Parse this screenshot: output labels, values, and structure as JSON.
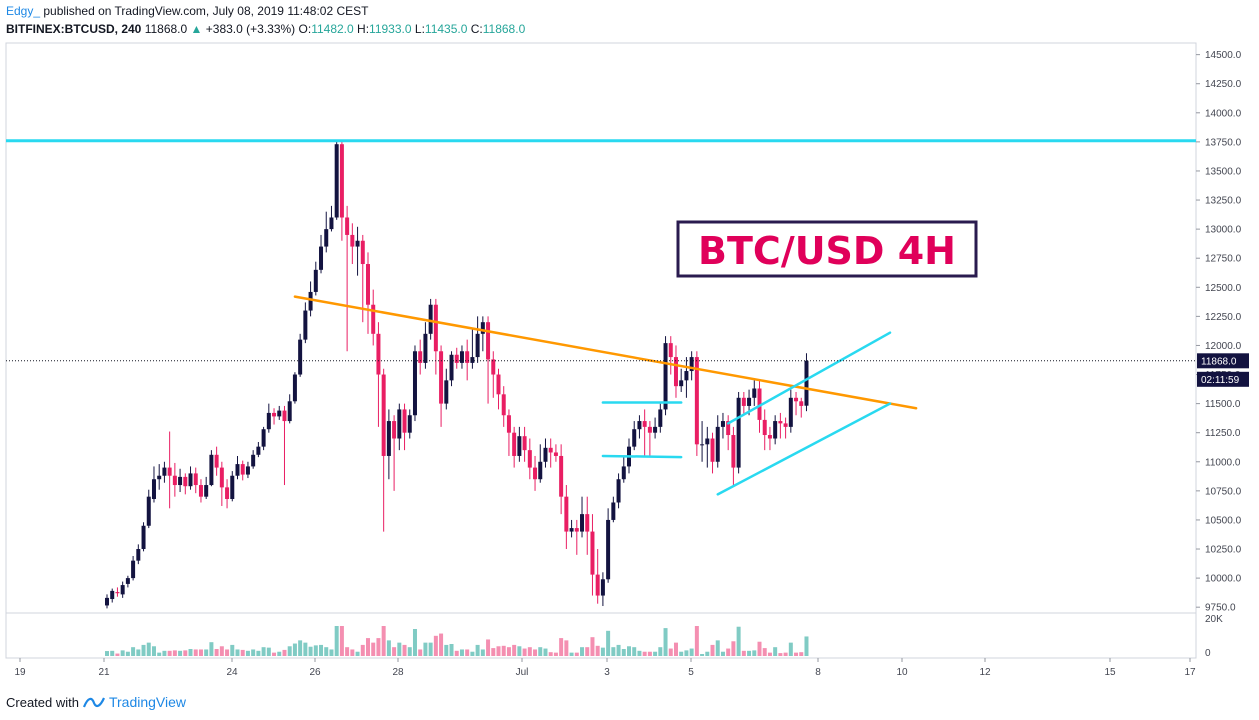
{
  "header": {
    "author": "Edgy_",
    "published": "published on TradingView.com, July 08, 2019 11:48:02 CEST",
    "symbol": "BITFINEX:BTCUSD, 240",
    "last": "11868.0",
    "change_arrow": "▲",
    "change": "+383.0 (+3.33%)",
    "o_label": "O:",
    "o": "11482.0",
    "h_label": "H:",
    "h": "11933.0",
    "l_label": "L:",
    "l": "11435.0",
    "c_label": "C:",
    "c": "11868.0"
  },
  "annotation": {
    "title": "BTC/USD 4H"
  },
  "price_badge": "11868.0",
  "countdown_badge": "02:11:59",
  "volume_label": "20K",
  "volume_zero": "0",
  "footer": {
    "created": "Created with",
    "brand": "TradingView"
  },
  "colors": {
    "up": "#131340",
    "down": "#e91e63",
    "vol_up": "#80cbc4",
    "vol_down": "#f48fb1",
    "cyan": "#29d9f0",
    "orange": "#ff9800",
    "annotation_border": "#2a1b4f",
    "annotation_text": "#e0005a"
  },
  "chart_data": {
    "type": "candlestick",
    "ylim": [
      9700,
      14600
    ],
    "y_ticks": [
      "14500.0",
      "14250.0",
      "14000.0",
      "13750.0",
      "13500.0",
      "13250.0",
      "13000.0",
      "12750.0",
      "12500.0",
      "12250.0",
      "12000.0",
      "11750.0",
      "11500.0",
      "11250.0",
      "11000.0",
      "10750.0",
      "10500.0",
      "10250.0",
      "10000.0",
      "9750.0"
    ],
    "x_ticks": [
      "19",
      "21",
      "24",
      "26",
      "28",
      "Jul",
      "3",
      "5",
      "8",
      "10",
      "12",
      "15",
      "17"
    ],
    "current_price": 11868,
    "horizontal_resistance": 13760,
    "candles": [
      [
        9765,
        9830,
        9740,
        9860
      ],
      [
        9820,
        9890,
        9790,
        9910
      ],
      [
        9880,
        9870,
        9840,
        9920
      ],
      [
        9860,
        9940,
        9830,
        9970
      ],
      [
        9950,
        10000,
        9920,
        10020
      ],
      [
        10000,
        10150,
        9980,
        10190
      ],
      [
        10150,
        10250,
        10120,
        10290
      ],
      [
        10250,
        10450,
        10230,
        10480
      ],
      [
        10450,
        10700,
        10430,
        10760
      ],
      [
        10680,
        10850,
        10650,
        10960
      ],
      [
        10850,
        10880,
        10760,
        10980
      ],
      [
        10880,
        10950,
        10820,
        11000
      ],
      [
        10950,
        10880,
        10600,
        11260
      ],
      [
        10880,
        10800,
        10700,
        10990
      ],
      [
        10800,
        10870,
        10740,
        10940
      ],
      [
        10870,
        10790,
        10720,
        10900
      ],
      [
        10790,
        10900,
        10760,
        10960
      ],
      [
        10900,
        10800,
        10730,
        10950
      ],
      [
        10800,
        10700,
        10650,
        10850
      ],
      [
        10700,
        10800,
        10680,
        10870
      ],
      [
        10800,
        11060,
        10790,
        11100
      ],
      [
        11060,
        10950,
        10880,
        11130
      ],
      [
        10950,
        10780,
        10620,
        11000
      ],
      [
        10780,
        10680,
        10600,
        10850
      ],
      [
        10680,
        10880,
        10660,
        10920
      ],
      [
        10880,
        10980,
        10850,
        11050
      ],
      [
        10980,
        10890,
        10840,
        11010
      ],
      [
        10890,
        10960,
        10860,
        11000
      ],
      [
        10960,
        11060,
        10940,
        11100
      ],
      [
        11060,
        11130,
        11040,
        11170
      ],
      [
        11130,
        11280,
        11100,
        11300
      ],
      [
        11280,
        11420,
        11250,
        11500
      ],
      [
        11420,
        11390,
        11320,
        11460
      ],
      [
        11390,
        11440,
        11360,
        11480
      ],
      [
        11440,
        11350,
        10800,
        11480
      ],
      [
        11350,
        11520,
        11330,
        11580
      ],
      [
        11520,
        11750,
        11500,
        11770
      ],
      [
        11750,
        12050,
        11730,
        12100
      ],
      [
        12050,
        12300,
        12020,
        12370
      ],
      [
        12300,
        12460,
        12250,
        12550
      ],
      [
        12460,
        12650,
        12430,
        12720
      ],
      [
        12650,
        12850,
        12620,
        12950
      ],
      [
        12850,
        13000,
        12800,
        13150
      ],
      [
        13000,
        13100,
        12980,
        13200
      ],
      [
        13100,
        13730,
        13080,
        13760
      ],
      [
        13730,
        13100,
        12900,
        13760
      ],
      [
        13100,
        12950,
        11950,
        13200
      ],
      [
        12950,
        12850,
        12700,
        13050
      ],
      [
        12850,
        12900,
        12600,
        13020
      ],
      [
        12900,
        12700,
        12200,
        12950
      ],
      [
        12700,
        12350,
        12100,
        12800
      ],
      [
        12350,
        12100,
        12000,
        12480
      ],
      [
        12100,
        11750,
        11300,
        12200
      ],
      [
        11750,
        11050,
        10400,
        11800
      ],
      [
        11050,
        11350,
        10850,
        11450
      ],
      [
        11350,
        11200,
        10750,
        11400
      ],
      [
        11200,
        11450,
        11100,
        11500
      ],
      [
        11450,
        11250,
        11100,
        11500
      ],
      [
        11250,
        11400,
        11200,
        11450
      ],
      [
        11400,
        11950,
        11350,
        12000
      ],
      [
        11950,
        11850,
        11750,
        12050
      ],
      [
        11850,
        12100,
        11800,
        12200
      ],
      [
        12100,
        12350,
        12050,
        12400
      ],
      [
        12350,
        11950,
        11750,
        12400
      ],
      [
        11950,
        11500,
        11300,
        12000
      ],
      [
        11500,
        11700,
        11450,
        11800
      ],
      [
        11700,
        11920,
        11650,
        11950
      ],
      [
        11920,
        11850,
        11800,
        11980
      ],
      [
        11850,
        11950,
        11800,
        12000
      ],
      [
        11950,
        11850,
        11700,
        12050
      ],
      [
        11850,
        11900,
        11800,
        12150
      ],
      [
        11900,
        12100,
        11850,
        12250
      ],
      [
        12100,
        12200,
        11950,
        12250
      ],
      [
        12200,
        11880,
        11500,
        12250
      ],
      [
        11880,
        11750,
        11550,
        11950
      ],
      [
        11750,
        11580,
        11450,
        11800
      ],
      [
        11580,
        11400,
        11300,
        11650
      ],
      [
        11400,
        11250,
        11050,
        11450
      ],
      [
        11250,
        11050,
        10950,
        11300
      ],
      [
        11050,
        11220,
        11000,
        11300
      ],
      [
        11220,
        11100,
        11000,
        11300
      ],
      [
        11100,
        10950,
        10850,
        11200
      ],
      [
        10950,
        10850,
        10750,
        11050
      ],
      [
        10850,
        11000,
        10820,
        11150
      ],
      [
        11000,
        11120,
        10950,
        11200
      ],
      [
        11120,
        11080,
        10950,
        11200
      ],
      [
        11080,
        11050,
        11000,
        11150
      ],
      [
        11050,
        10700,
        10550,
        11150
      ],
      [
        10700,
        10400,
        10250,
        10800
      ],
      [
        10400,
        10430,
        10350,
        10500
      ],
      [
        10430,
        10400,
        10200,
        10500
      ],
      [
        10400,
        10550,
        10350,
        10700
      ],
      [
        10550,
        10400,
        10200,
        10700
      ],
      [
        10400,
        10030,
        9850,
        10550
      ],
      [
        10030,
        9850,
        9780,
        10250
      ],
      [
        9850,
        9990,
        9760,
        10050
      ],
      [
        9990,
        10500,
        9960,
        10600
      ],
      [
        10500,
        10650,
        10480,
        10700
      ],
      [
        10650,
        10850,
        10600,
        10900
      ],
      [
        10850,
        10960,
        10820,
        11050
      ],
      [
        10960,
        11130,
        10900,
        11200
      ],
      [
        11130,
        11280,
        11100,
        11350
      ],
      [
        11280,
        11350,
        11200,
        11400
      ],
      [
        11350,
        11300,
        11050,
        11450
      ],
      [
        11300,
        11250,
        11050,
        11350
      ],
      [
        11250,
        11300,
        11200,
        11380
      ],
      [
        11300,
        11450,
        11250,
        11500
      ],
      [
        11450,
        12020,
        11400,
        12080
      ],
      [
        12020,
        11900,
        11750,
        12080
      ],
      [
        11900,
        11650,
        11550,
        12000
      ],
      [
        11650,
        11700,
        11600,
        11800
      ],
      [
        11700,
        11780,
        11550,
        11900
      ],
      [
        11780,
        11900,
        11700,
        11950
      ],
      [
        11900,
        11150,
        11050,
        11950
      ],
      [
        11150,
        11150,
        11000,
        11350
      ],
      [
        11150,
        11200,
        10950,
        11300
      ],
      [
        11200,
        11000,
        10900,
        11250
      ],
      [
        11000,
        11300,
        10950,
        11400
      ],
      [
        11300,
        11350,
        11200,
        11420
      ],
      [
        11350,
        11230,
        11100,
        11400
      ],
      [
        11230,
        10950,
        10800,
        11300
      ],
      [
        10950,
        11550,
        10900,
        11600
      ],
      [
        11550,
        11480,
        11400,
        11600
      ],
      [
        11480,
        11550,
        11400,
        11620
      ],
      [
        11550,
        11630,
        11480,
        11700
      ],
      [
        11630,
        11360,
        11250,
        11700
      ],
      [
        11360,
        11230,
        11100,
        11450
      ],
      [
        11230,
        11200,
        11100,
        11300
      ],
      [
        11200,
        11350,
        11150,
        11400
      ],
      [
        11350,
        11330,
        11200,
        11420
      ],
      [
        11330,
        11300,
        11200,
        11380
      ],
      [
        11300,
        11550,
        11250,
        11620
      ],
      [
        11550,
        11520,
        11400,
        11600
      ],
      [
        11520,
        11480,
        11380,
        11550
      ],
      [
        11482,
        11868,
        11435,
        11933
      ]
    ],
    "trendlines": [
      {
        "name": "descending-resistance",
        "color": "orange",
        "points": [
          [
            36,
            12420
          ],
          [
            155,
            11460
          ]
        ]
      },
      {
        "name": "channel-upper",
        "color": "cyan",
        "points": [
          [
            119,
            11330
          ],
          [
            150,
            12110
          ]
        ]
      },
      {
        "name": "channel-lower",
        "color": "cyan",
        "points": [
          [
            117,
            10720
          ],
          [
            150,
            11500
          ]
        ]
      },
      {
        "name": "range-top",
        "color": "cyan",
        "points": [
          [
            95,
            11510
          ],
          [
            110,
            11510
          ]
        ]
      },
      {
        "name": "range-bottom",
        "color": "cyan",
        "points": [
          [
            95,
            11050
          ],
          [
            110,
            11040
          ]
        ]
      }
    ]
  }
}
